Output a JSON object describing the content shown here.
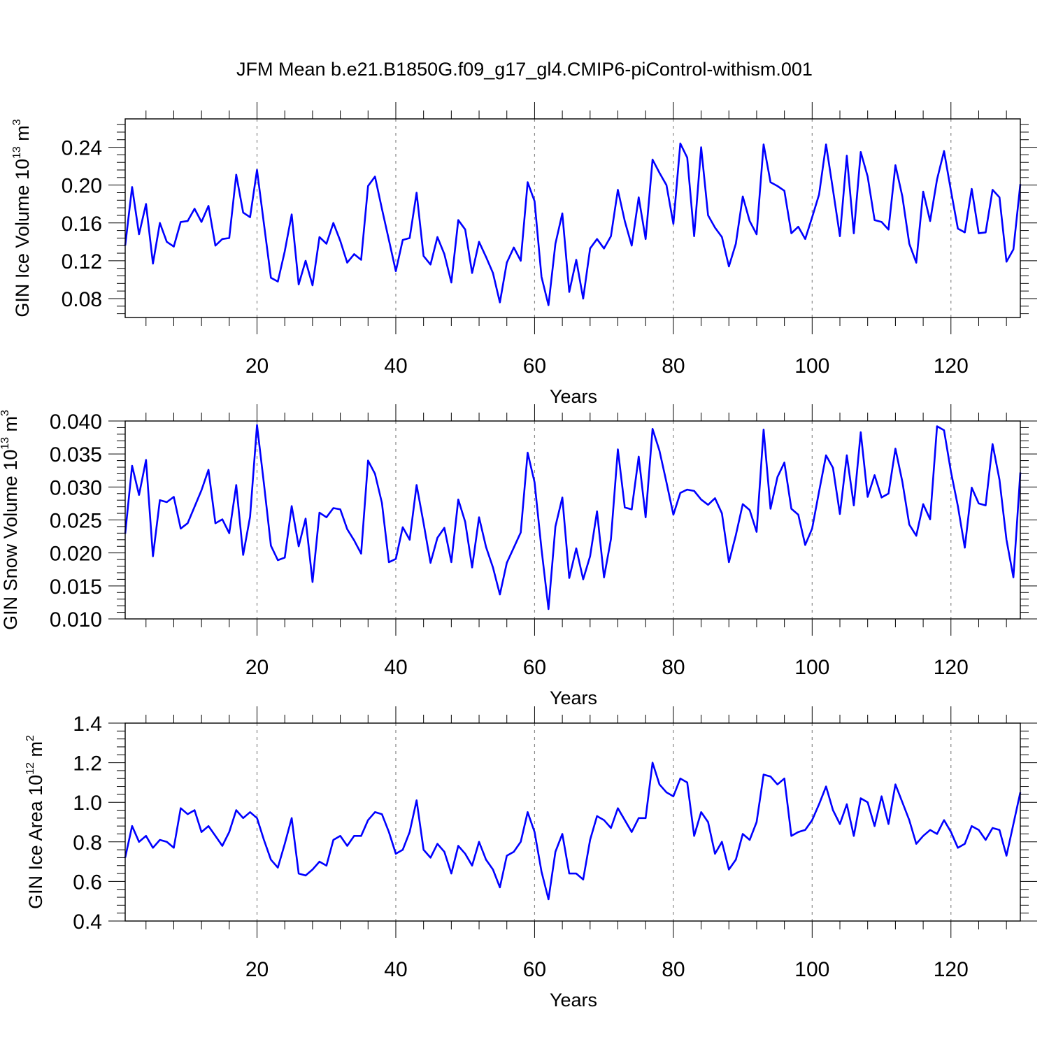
{
  "title": "JFM Mean b.e21.B1850G.f09_g17_gl4.CMIP6-piControl-withism.001",
  "line_color": "#0000ff",
  "chart_data": [
    {
      "type": "line",
      "ylabel": "GIN Ice Volume 10",
      "ylabel_exp": "13",
      "ylabel_unit": "m",
      "ylabel_unit_exp": "3",
      "xlabel": "Years",
      "xlim": [
        1,
        130
      ],
      "ylim": [
        0.06,
        0.27
      ],
      "x_ticks": [
        20,
        40,
        60,
        80,
        100,
        120
      ],
      "x_tick_labels": [
        "20",
        "40",
        "60",
        "80",
        "100",
        "120"
      ],
      "y_ticks": [
        0.08,
        0.12,
        0.16,
        0.2,
        0.24
      ],
      "y_tick_labels": [
        "0.08",
        "0.12",
        "0.16",
        "0.20",
        "0.24"
      ],
      "grid": "vertical dashed at major x ticks",
      "x": [
        1,
        2,
        3,
        4,
        5,
        6,
        7,
        8,
        9,
        10,
        11,
        12,
        13,
        14,
        15,
        16,
        17,
        18,
        19,
        20,
        21,
        22,
        23,
        24,
        25,
        26,
        27,
        28,
        29,
        30,
        31,
        32,
        33,
        34,
        35,
        36,
        37,
        38,
        39,
        40,
        41,
        42,
        43,
        44,
        45,
        46,
        47,
        48,
        49,
        50,
        51,
        52,
        53,
        54,
        55,
        56,
        57,
        58,
        59,
        60,
        61,
        62,
        63,
        64,
        65,
        66,
        67,
        68,
        69,
        70,
        71,
        72,
        73,
        74,
        75,
        76,
        77,
        78,
        79,
        80,
        81,
        82,
        83,
        84,
        85,
        86,
        87,
        88,
        89,
        90,
        91,
        92,
        93,
        94,
        95,
        96,
        97,
        98,
        99,
        100,
        101,
        102,
        103,
        104,
        105,
        106,
        107,
        108,
        109,
        110,
        111,
        112,
        113,
        114,
        115,
        116,
        117,
        118,
        119,
        120,
        121,
        122,
        123,
        124,
        125,
        126,
        127,
        128,
        129,
        130
      ],
      "values": [
        0.136,
        0.198,
        0.148,
        0.18,
        0.117,
        0.16,
        0.14,
        0.135,
        0.161,
        0.162,
        0.175,
        0.161,
        0.178,
        0.136,
        0.143,
        0.144,
        0.211,
        0.171,
        0.166,
        0.216,
        0.159,
        0.102,
        0.098,
        0.13,
        0.169,
        0.095,
        0.12,
        0.094,
        0.145,
        0.138,
        0.16,
        0.141,
        0.118,
        0.127,
        0.121,
        0.199,
        0.209,
        0.175,
        0.142,
        0.109,
        0.142,
        0.144,
        0.192,
        0.125,
        0.116,
        0.145,
        0.127,
        0.097,
        0.163,
        0.153,
        0.107,
        0.14,
        0.124,
        0.107,
        0.076,
        0.118,
        0.134,
        0.12,
        0.203,
        0.183,
        0.103,
        0.073,
        0.138,
        0.17,
        0.087,
        0.121,
        0.08,
        0.133,
        0.143,
        0.133,
        0.146,
        0.195,
        0.162,
        0.136,
        0.187,
        0.143,
        0.227,
        0.213,
        0.2,
        0.159,
        0.244,
        0.229,
        0.146,
        0.24,
        0.168,
        0.155,
        0.145,
        0.114,
        0.138,
        0.188,
        0.162,
        0.148,
        0.243,
        0.203,
        0.199,
        0.194,
        0.149,
        0.156,
        0.143,
        0.166,
        0.19,
        0.243,
        0.195,
        0.146,
        0.231,
        0.149,
        0.235,
        0.209,
        0.163,
        0.161,
        0.153,
        0.221,
        0.188,
        0.138,
        0.118,
        0.193,
        0.162,
        0.206,
        0.236,
        0.194,
        0.154,
        0.15,
        0.196,
        0.149,
        0.15,
        0.195,
        0.187,
        0.119,
        0.132,
        0.201
      ]
    },
    {
      "type": "line",
      "ylabel": "GIN Snow Volume 10",
      "ylabel_exp": "13",
      "ylabel_unit": "m",
      "ylabel_unit_exp": "3",
      "xlabel": "Years",
      "xlim": [
        1,
        130
      ],
      "ylim": [
        0.01,
        0.04
      ],
      "x_ticks": [
        20,
        40,
        60,
        80,
        100,
        120
      ],
      "x_tick_labels": [
        "20",
        "40",
        "60",
        "80",
        "100",
        "120"
      ],
      "y_ticks": [
        0.01,
        0.015,
        0.02,
        0.025,
        0.03,
        0.035,
        0.04
      ],
      "y_tick_labels": [
        "0.010",
        "0.015",
        "0.020",
        "0.025",
        "0.030",
        "0.035",
        "0.040"
      ],
      "grid": "vertical dashed at major x ticks",
      "x": [
        1,
        2,
        3,
        4,
        5,
        6,
        7,
        8,
        9,
        10,
        11,
        12,
        13,
        14,
        15,
        16,
        17,
        18,
        19,
        20,
        21,
        22,
        23,
        24,
        25,
        26,
        27,
        28,
        29,
        30,
        31,
        32,
        33,
        34,
        35,
        36,
        37,
        38,
        39,
        40,
        41,
        42,
        43,
        44,
        45,
        46,
        47,
        48,
        49,
        50,
        51,
        52,
        53,
        54,
        55,
        56,
        57,
        58,
        59,
        60,
        61,
        62,
        63,
        64,
        65,
        66,
        67,
        68,
        69,
        70,
        71,
        72,
        73,
        74,
        75,
        76,
        77,
        78,
        79,
        80,
        81,
        82,
        83,
        84,
        85,
        86,
        87,
        88,
        89,
        90,
        91,
        92,
        93,
        94,
        95,
        96,
        97,
        98,
        99,
        100,
        101,
        102,
        103,
        104,
        105,
        106,
        107,
        108,
        109,
        110,
        111,
        112,
        113,
        114,
        115,
        116,
        117,
        118,
        119,
        120,
        121,
        122,
        123,
        124,
        125,
        126,
        127,
        128,
        129,
        130
      ],
      "values": [
        0.0229,
        0.0332,
        0.0288,
        0.0341,
        0.0195,
        0.028,
        0.0277,
        0.0285,
        0.0237,
        0.0245,
        0.027,
        0.0295,
        0.0326,
        0.0245,
        0.0251,
        0.023,
        0.0303,
        0.0197,
        0.0255,
        0.0394,
        0.0305,
        0.0211,
        0.0189,
        0.0193,
        0.0271,
        0.021,
        0.0252,
        0.0156,
        0.0261,
        0.0254,
        0.0268,
        0.0266,
        0.0236,
        0.0219,
        0.0199,
        0.034,
        0.032,
        0.0276,
        0.0186,
        0.0191,
        0.0239,
        0.022,
        0.0303,
        0.0245,
        0.0185,
        0.0223,
        0.0238,
        0.0186,
        0.0281,
        0.0247,
        0.0178,
        0.0254,
        0.0209,
        0.0178,
        0.0137,
        0.0185,
        0.0208,
        0.0231,
        0.0352,
        0.0307,
        0.0206,
        0.0115,
        0.024,
        0.0284,
        0.0162,
        0.0207,
        0.016,
        0.0195,
        0.0263,
        0.0163,
        0.0221,
        0.0357,
        0.0269,
        0.0266,
        0.0346,
        0.0254,
        0.0388,
        0.0355,
        0.0307,
        0.0258,
        0.0291,
        0.0296,
        0.0294,
        0.0281,
        0.0273,
        0.0283,
        0.026,
        0.0186,
        0.0227,
        0.0274,
        0.0265,
        0.0232,
        0.0387,
        0.0267,
        0.0315,
        0.0337,
        0.0267,
        0.0258,
        0.0212,
        0.0237,
        0.0293,
        0.0348,
        0.0329,
        0.0259,
        0.0348,
        0.0272,
        0.0383,
        0.0285,
        0.0318,
        0.0284,
        0.029,
        0.0358,
        0.0308,
        0.0243,
        0.0226,
        0.0274,
        0.0251,
        0.0392,
        0.0386,
        0.0323,
        0.0271,
        0.0208,
        0.0299,
        0.0275,
        0.0272,
        0.0365,
        0.0311,
        0.022,
        0.0163,
        0.0322
      ]
    },
    {
      "type": "line",
      "ylabel": "GIN Ice Area 10",
      "ylabel_exp": "12",
      "ylabel_unit": "m",
      "ylabel_unit_exp": "2",
      "xlabel": "Years",
      "xlim": [
        1,
        130
      ],
      "ylim": [
        0.4,
        1.4
      ],
      "x_ticks": [
        20,
        40,
        60,
        80,
        100,
        120
      ],
      "x_tick_labels": [
        "20",
        "40",
        "60",
        "80",
        "100",
        "120"
      ],
      "y_ticks": [
        0.4,
        0.6,
        0.8,
        1.0,
        1.2,
        1.4
      ],
      "y_tick_labels": [
        "0.4",
        "0.6",
        "0.8",
        "1.0",
        "1.2",
        "1.4"
      ],
      "grid": "vertical dashed at major x ticks",
      "x": [
        1,
        2,
        3,
        4,
        5,
        6,
        7,
        8,
        9,
        10,
        11,
        12,
        13,
        14,
        15,
        16,
        17,
        18,
        19,
        20,
        21,
        22,
        23,
        24,
        25,
        26,
        27,
        28,
        29,
        30,
        31,
        32,
        33,
        34,
        35,
        36,
        37,
        38,
        39,
        40,
        41,
        42,
        43,
        44,
        45,
        46,
        47,
        48,
        49,
        50,
        51,
        52,
        53,
        54,
        55,
        56,
        57,
        58,
        59,
        60,
        61,
        62,
        63,
        64,
        65,
        66,
        67,
        68,
        69,
        70,
        71,
        72,
        73,
        74,
        75,
        76,
        77,
        78,
        79,
        80,
        81,
        82,
        83,
        84,
        85,
        86,
        87,
        88,
        89,
        90,
        91,
        92,
        93,
        94,
        95,
        96,
        97,
        98,
        99,
        100,
        101,
        102,
        103,
        104,
        105,
        106,
        107,
        108,
        109,
        110,
        111,
        112,
        113,
        114,
        115,
        116,
        117,
        118,
        119,
        120,
        121,
        122,
        123,
        124,
        125,
        126,
        127,
        128,
        129,
        130
      ],
      "values": [
        0.72,
        0.88,
        0.8,
        0.83,
        0.77,
        0.81,
        0.8,
        0.77,
        0.97,
        0.94,
        0.96,
        0.85,
        0.88,
        0.83,
        0.78,
        0.85,
        0.96,
        0.92,
        0.95,
        0.92,
        0.81,
        0.71,
        0.67,
        0.79,
        0.92,
        0.64,
        0.63,
        0.66,
        0.7,
        0.68,
        0.81,
        0.83,
        0.78,
        0.83,
        0.83,
        0.91,
        0.95,
        0.94,
        0.85,
        0.74,
        0.76,
        0.85,
        1.01,
        0.76,
        0.72,
        0.79,
        0.75,
        0.64,
        0.78,
        0.74,
        0.68,
        0.8,
        0.71,
        0.66,
        0.57,
        0.73,
        0.75,
        0.8,
        0.95,
        0.85,
        0.65,
        0.51,
        0.75,
        0.84,
        0.64,
        0.64,
        0.61,
        0.81,
        0.93,
        0.91,
        0.87,
        0.97,
        0.91,
        0.85,
        0.92,
        0.92,
        1.2,
        1.09,
        1.05,
        1.03,
        1.12,
        1.1,
        0.83,
        0.95,
        0.9,
        0.74,
        0.8,
        0.66,
        0.71,
        0.84,
        0.81,
        0.9,
        1.14,
        1.13,
        1.09,
        1.12,
        0.83,
        0.85,
        0.86,
        0.91,
        0.99,
        1.08,
        0.96,
        0.89,
        0.99,
        0.83,
        1.02,
        1.0,
        0.88,
        1.03,
        0.89,
        1.09,
        1.0,
        0.91,
        0.79,
        0.83,
        0.86,
        0.84,
        0.91,
        0.85,
        0.77,
        0.79,
        0.88,
        0.86,
        0.81,
        0.87,
        0.86,
        0.73,
        0.89,
        1.05
      ]
    }
  ]
}
